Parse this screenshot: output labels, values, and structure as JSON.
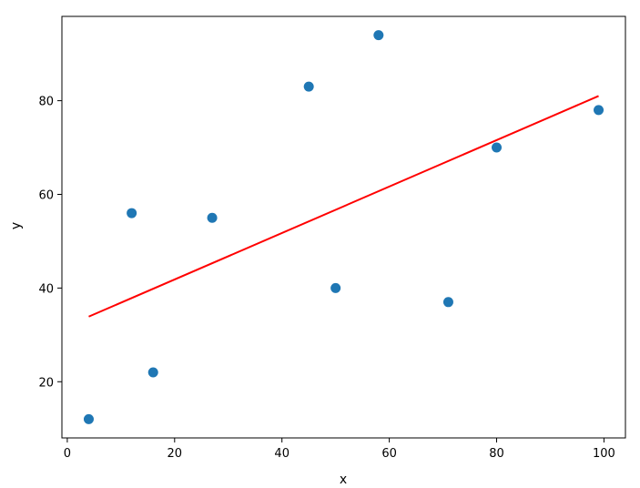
{
  "chart_data": {
    "type": "scatter",
    "xlabel": "x",
    "ylabel": "y",
    "xlim": [
      -1,
      104
    ],
    "ylim": [
      8,
      98
    ],
    "xticks": [
      0,
      20,
      40,
      60,
      80,
      100
    ],
    "yticks": [
      20,
      40,
      60,
      80
    ],
    "grid": false,
    "series": [
      {
        "type": "scatter",
        "color": "#1f77b4",
        "points": [
          {
            "x": 4,
            "y": 12
          },
          {
            "x": 12,
            "y": 56
          },
          {
            "x": 16,
            "y": 22
          },
          {
            "x": 27,
            "y": 55
          },
          {
            "x": 45,
            "y": 83
          },
          {
            "x": 50,
            "y": 40
          },
          {
            "x": 58,
            "y": 94
          },
          {
            "x": 71,
            "y": 37
          },
          {
            "x": 80,
            "y": 70
          },
          {
            "x": 99,
            "y": 78
          }
        ]
      },
      {
        "type": "line",
        "color": "#ff0000",
        "points": [
          {
            "x": 4,
            "y": 33.9
          },
          {
            "x": 99,
            "y": 81.0
          }
        ]
      }
    ]
  }
}
